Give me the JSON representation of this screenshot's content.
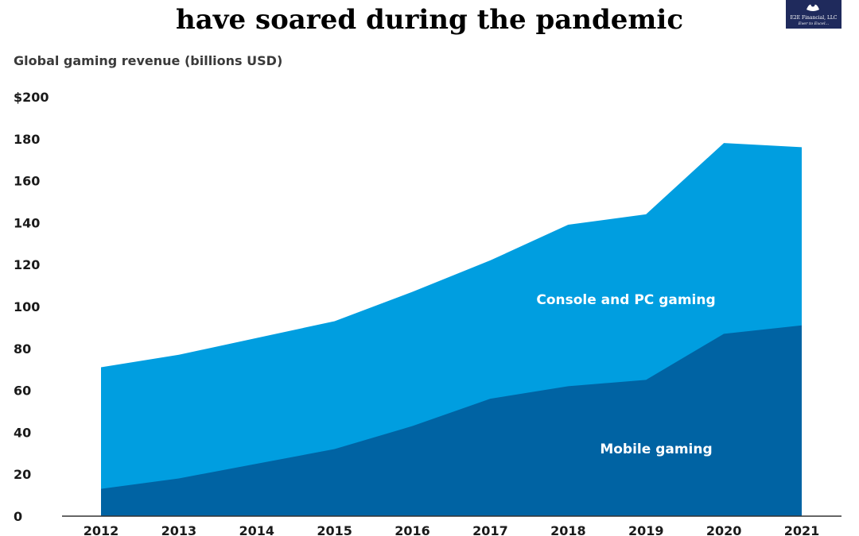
{
  "header": {
    "title_line": "have soared during the pandemic"
  },
  "logo": {
    "company": "E2E Financial, LLC",
    "tagline": "Ever to Excel..."
  },
  "chart_data": {
    "type": "area",
    "stacked": true,
    "title": "have soared during the pandemic",
    "ylabel": "Global gaming revenue (billions USD)",
    "xlabel": "",
    "x": [
      2012,
      2013,
      2014,
      2015,
      2016,
      2017,
      2018,
      2019,
      2020,
      2021
    ],
    "ylim": [
      0,
      200
    ],
    "y_ticks": [
      "0",
      "20",
      "40",
      "60",
      "80",
      "100",
      "120",
      "140",
      "160",
      "180",
      "$200"
    ],
    "x_tick_labels": [
      "2012",
      "2013",
      "2014",
      "2015",
      "2016",
      "2017",
      "2018",
      "2019",
      "2020",
      "2021"
    ],
    "series": [
      {
        "name": "Mobile gaming",
        "color": "#0063a3",
        "values": [
          13,
          18,
          25,
          32,
          43,
          56,
          62,
          65,
          87,
          91
        ]
      },
      {
        "name": "Console and PC gaming",
        "color": "#009ee0",
        "values": [
          58,
          59,
          60,
          61,
          64,
          66,
          77,
          79,
          91,
          85
        ]
      }
    ],
    "grid": false,
    "legend": "inline labels on areas"
  }
}
